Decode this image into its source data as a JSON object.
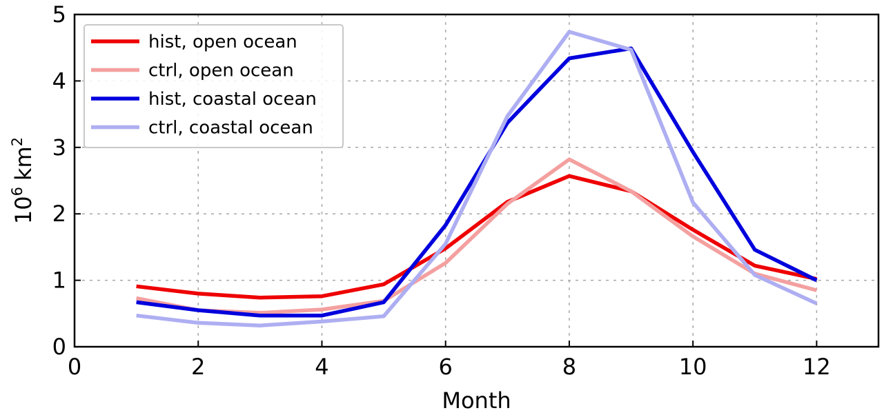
{
  "chart_data": {
    "type": "line",
    "xlabel": "Month",
    "ylabel": "10",
    "ylabel_superscript": "6",
    "ylabel_unit": "km",
    "ylabel_unit_superscript": "2",
    "xlim": [
      0,
      13
    ],
    "ylim": [
      0,
      5
    ],
    "xticks": [
      0,
      2,
      4,
      6,
      8,
      10,
      12
    ],
    "yticks": [
      0,
      1,
      2,
      3,
      4,
      5
    ],
    "grid": true,
    "legend_position": "top-left",
    "x": [
      1,
      2,
      3,
      4,
      5,
      6,
      7,
      8,
      9,
      10,
      11,
      12
    ],
    "series": [
      {
        "name": "hist, open ocean",
        "color": "#ee0000",
        "opacity": 1.0,
        "values": [
          0.91,
          0.8,
          0.74,
          0.76,
          0.94,
          1.48,
          2.18,
          2.57,
          2.34,
          1.76,
          1.22,
          1.02
        ]
      },
      {
        "name": "ctrl, open ocean",
        "color": "#f4a0a0",
        "opacity": 1.0,
        "values": [
          0.73,
          0.55,
          0.51,
          0.56,
          0.69,
          1.26,
          2.15,
          2.82,
          2.34,
          1.66,
          1.1,
          0.85
        ]
      },
      {
        "name": "hist, coastal ocean",
        "color": "#0000dd",
        "opacity": 1.0,
        "values": [
          0.67,
          0.55,
          0.47,
          0.47,
          0.67,
          1.83,
          3.37,
          4.34,
          4.49,
          2.93,
          1.46,
          1.0
        ]
      },
      {
        "name": "ctrl, coastal ocean",
        "color": "#aeaef2",
        "opacity": 1.0,
        "values": [
          0.47,
          0.36,
          0.32,
          0.38,
          0.46,
          1.55,
          3.47,
          4.74,
          4.47,
          2.17,
          1.08,
          0.65
        ]
      }
    ]
  }
}
